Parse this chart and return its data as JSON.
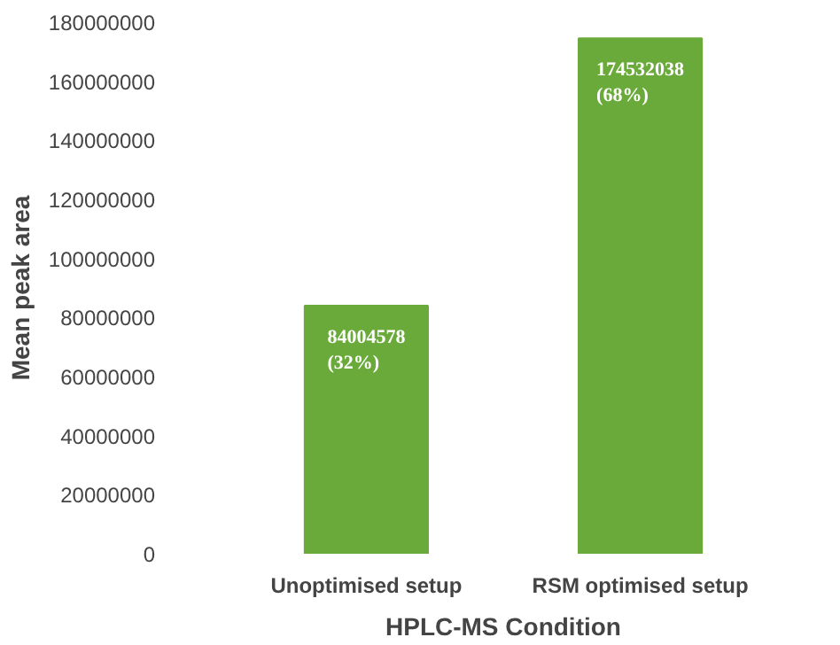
{
  "chart_data": {
    "type": "bar",
    "xlabel": "HPLC-MS Condition",
    "ylabel": "Mean peak area",
    "categories": [
      "Unoptimised setup",
      "RSM optimised setup"
    ],
    "values": [
      84004578,
      174532038
    ],
    "value_labels": [
      "84004578\n(32%)",
      "174532038\n(68%)"
    ],
    "color": "#6aaa3a",
    "ylim": [
      0,
      180000000
    ],
    "yticks": [
      0,
      20000000,
      40000000,
      60000000,
      80000000,
      100000000,
      120000000,
      140000000,
      160000000,
      180000000
    ],
    "grid": false
  }
}
